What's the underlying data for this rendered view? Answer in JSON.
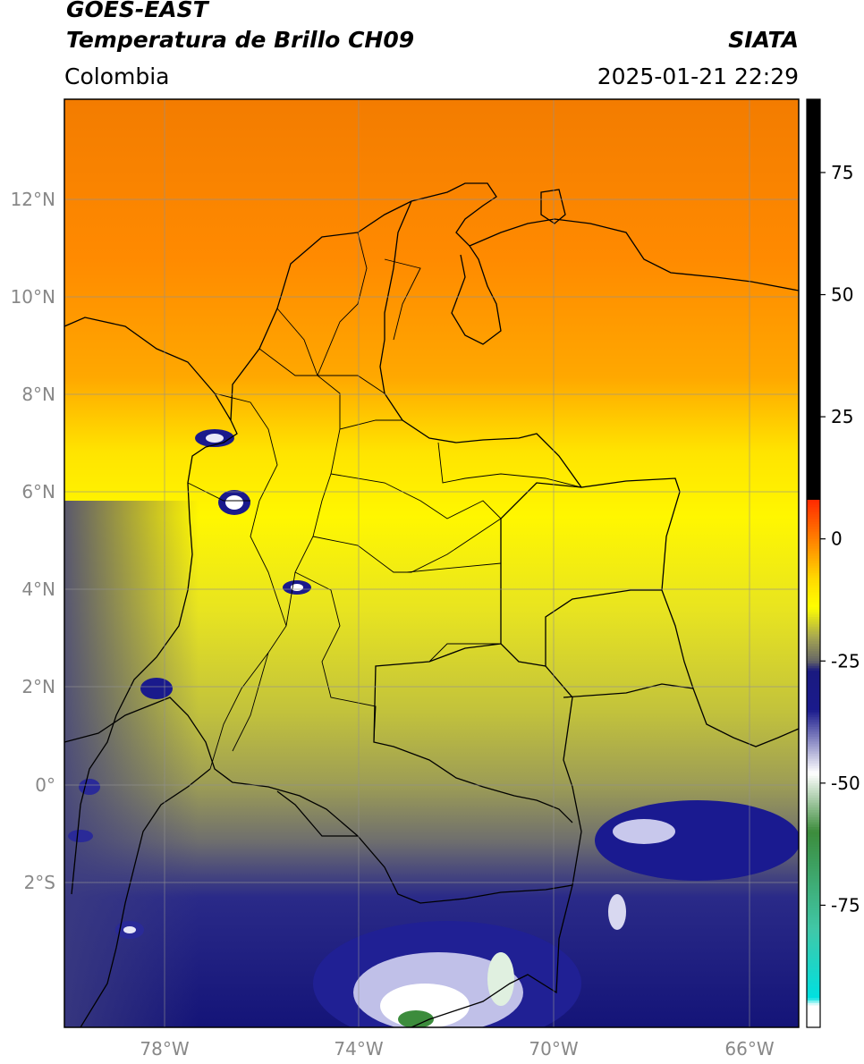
{
  "header": {
    "satellite": "GOES-EAST",
    "product": "Temperatura de Brillo CH09",
    "organization": "SIATA",
    "region": "Colombia",
    "timestamp": "2025-01-21 22:29"
  },
  "map": {
    "lon_range": [
      -80,
      -65
    ],
    "lat_range": [
      -5,
      14
    ],
    "lat_ticks": [
      {
        "value": 12,
        "label": "12°N"
      },
      {
        "value": 10,
        "label": "10°N"
      },
      {
        "value": 8,
        "label": "8°N"
      },
      {
        "value": 6,
        "label": "6°N"
      },
      {
        "value": 4,
        "label": "4°N"
      },
      {
        "value": 2,
        "label": "2°N"
      },
      {
        "value": 0,
        "label": "0°"
      },
      {
        "value": -2,
        "label": "2°S"
      }
    ],
    "lon_ticks": [
      {
        "value": -78,
        "label": "78°W"
      },
      {
        "value": -74,
        "label": "74°W"
      },
      {
        "value": -70,
        "label": "70°W"
      },
      {
        "value": -66,
        "label": "66°W"
      }
    ],
    "grid": true
  },
  "colorbar": {
    "range": [
      -100,
      90
    ],
    "ticks": [
      {
        "value": 75,
        "label": "75"
      },
      {
        "value": 50,
        "label": "50"
      },
      {
        "value": 25,
        "label": "25"
      },
      {
        "value": 0,
        "label": "0"
      },
      {
        "value": -25,
        "label": "-25"
      },
      {
        "value": -50,
        "label": "-50"
      },
      {
        "value": -75,
        "label": "-75"
      }
    ],
    "stops": [
      {
        "value": 90,
        "color": "#000000"
      },
      {
        "value": 8,
        "color": "#000000"
      },
      {
        "value": 7.9,
        "color": "#ff2a00"
      },
      {
        "value": 0,
        "color": "#ff7f00"
      },
      {
        "value": -8,
        "color": "#ffd700"
      },
      {
        "value": -14,
        "color": "#ffff00"
      },
      {
        "value": -20,
        "color": "#a8a850"
      },
      {
        "value": -25,
        "color": "#666666"
      },
      {
        "value": -27,
        "color": "#1a1a80"
      },
      {
        "value": -35,
        "color": "#1a1a8c"
      },
      {
        "value": -48,
        "color": "#ffffff"
      },
      {
        "value": -60,
        "color": "#3c8c3c"
      },
      {
        "value": -80,
        "color": "#40c8a8"
      },
      {
        "value": -94,
        "color": "#00e0e0"
      },
      {
        "value": -95.5,
        "color": "#ffffff"
      },
      {
        "value": -100,
        "color": "#ffffff"
      }
    ]
  }
}
